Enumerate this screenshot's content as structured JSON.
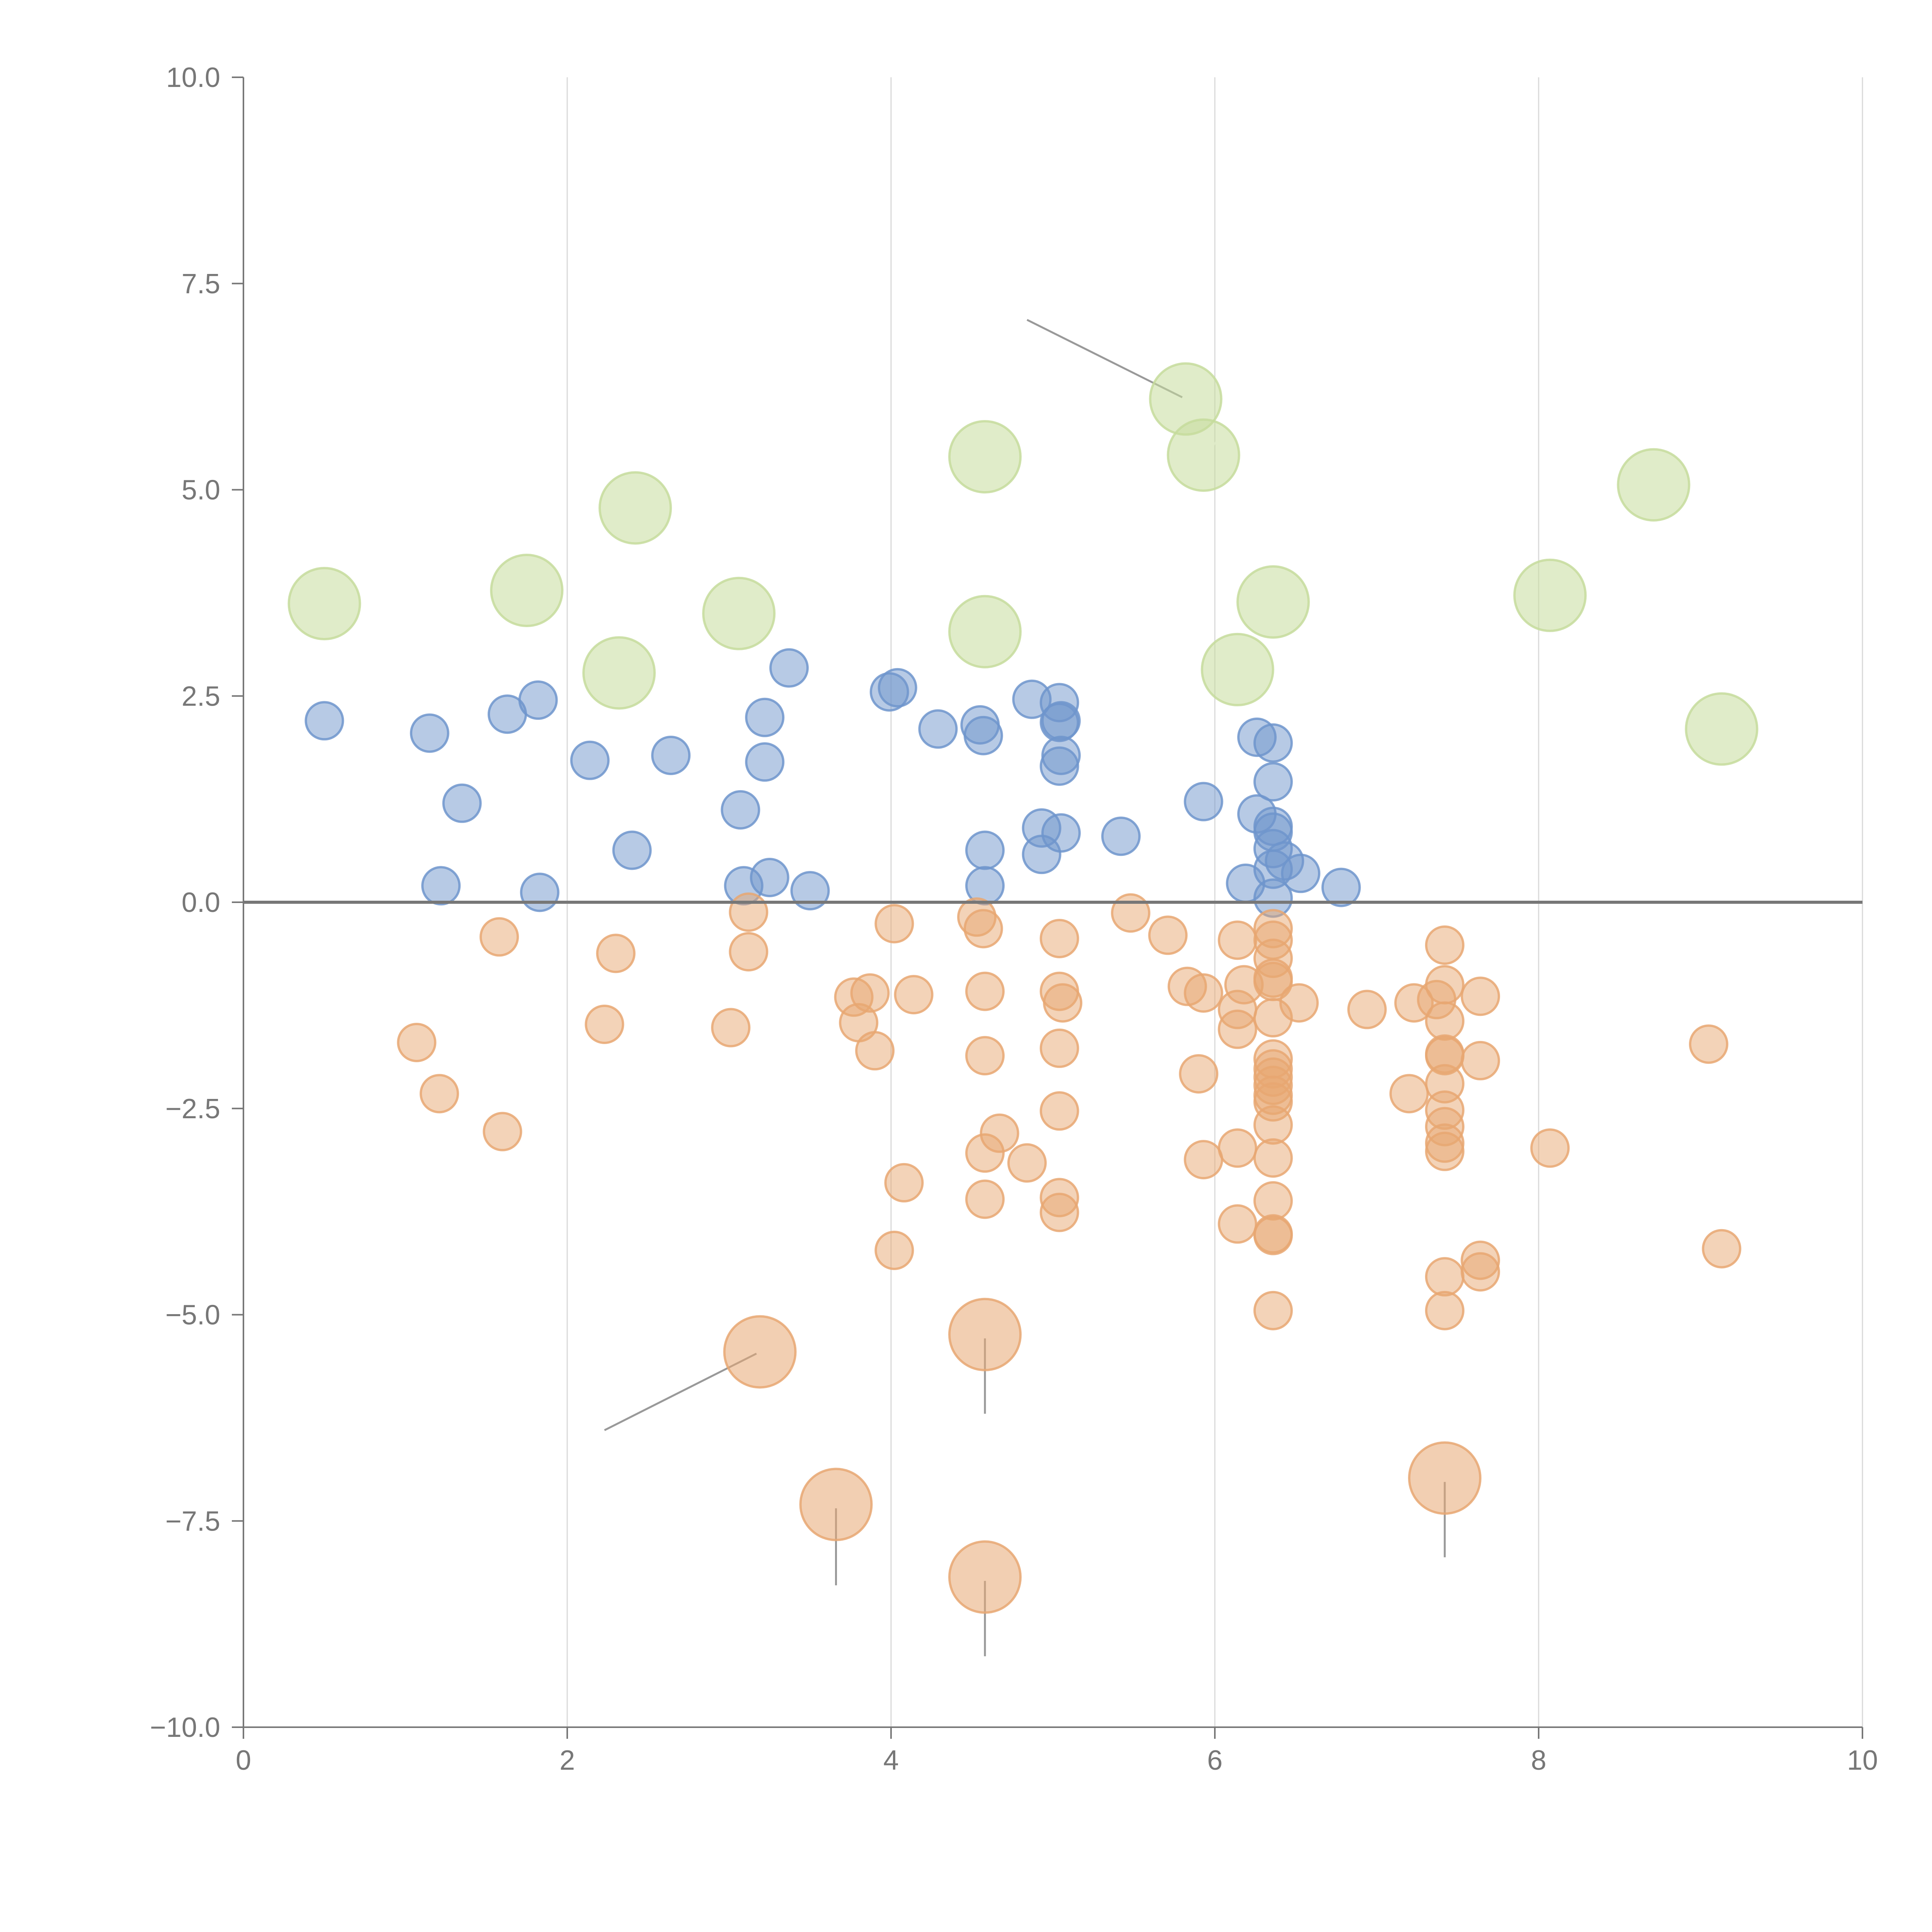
{
  "chart_data": {
    "type": "scatter",
    "title": "",
    "xlabel": "",
    "ylabel": "",
    "xlim": [
      0,
      10
    ],
    "ylim": [
      -10,
      10
    ],
    "x_ticks": [
      0,
      2,
      4,
      6,
      8,
      10
    ],
    "y_ticks": [
      -10,
      -7.5,
      -5,
      -2.5,
      0,
      2.5,
      5,
      7.5,
      10
    ],
    "x_tick_labels": [
      "0",
      "2",
      "4",
      "6",
      "8",
      "10"
    ],
    "y_tick_labels": [
      "−10.0",
      "−7.5",
      "−5.0",
      "−2.5",
      "0.0",
      "2.5",
      "5.0",
      "7.5",
      "10.0"
    ],
    "grid": "vertical",
    "reference_line": 0,
    "legend": "none",
    "series": [
      {
        "name": "positive",
        "color": "#6f95cc",
        "size": "small",
        "points": [
          [
            0.5,
            2.2
          ],
          [
            1.15,
            2.05
          ],
          [
            1.35,
            1.2
          ],
          [
            1.22,
            0.2
          ],
          [
            1.63,
            2.28
          ],
          [
            1.82,
            2.45
          ],
          [
            1.83,
            0.12
          ],
          [
            2.14,
            1.72
          ],
          [
            2.4,
            0.63
          ],
          [
            2.64,
            1.78
          ],
          [
            3.07,
            1.12
          ],
          [
            3.09,
            0.2
          ],
          [
            3.22,
            2.24
          ],
          [
            3.22,
            1.7
          ],
          [
            3.25,
            0.3
          ],
          [
            3.37,
            2.84
          ],
          [
            3.5,
            0.14
          ],
          [
            3.99,
            2.55
          ],
          [
            4.04,
            2.6
          ],
          [
            4.29,
            2.1
          ],
          [
            4.55,
            2.15
          ],
          [
            4.57,
            2.02
          ],
          [
            4.58,
            0.63
          ],
          [
            4.58,
            0.2
          ],
          [
            4.87,
            2.46
          ],
          [
            4.93,
            0.9
          ],
          [
            4.93,
            0.58
          ],
          [
            5.04,
            2.42
          ],
          [
            5.04,
            2.18
          ],
          [
            5.05,
            2.2
          ],
          [
            5.05,
            1.78
          ],
          [
            5.04,
            1.65
          ],
          [
            5.05,
            0.84
          ],
          [
            5.42,
            0.8
          ],
          [
            5.93,
            1.22
          ],
          [
            6.19,
            0.23
          ],
          [
            6.26,
            2.0
          ],
          [
            6.26,
            1.07
          ],
          [
            6.36,
            1.93
          ],
          [
            6.36,
            1.46
          ],
          [
            6.36,
            0.92
          ],
          [
            6.36,
            0.85
          ],
          [
            6.36,
            0.65
          ],
          [
            6.36,
            0.4
          ],
          [
            6.36,
            0.05
          ],
          [
            6.43,
            0.5
          ],
          [
            6.53,
            0.35
          ],
          [
            6.78,
            0.18
          ]
        ]
      },
      {
        "name": "negative",
        "color": "#e8a772",
        "size": "small",
        "points": [
          [
            1.07,
            -1.7
          ],
          [
            1.21,
            -2.32
          ],
          [
            1.58,
            -0.42
          ],
          [
            1.6,
            -2.78
          ],
          [
            2.23,
            -1.48
          ],
          [
            2.3,
            -0.62
          ],
          [
            3.01,
            -1.52
          ],
          [
            3.12,
            -0.12
          ],
          [
            3.12,
            -0.6
          ],
          [
            3.77,
            -1.15
          ],
          [
            3.8,
            -1.46
          ],
          [
            3.87,
            -1.1
          ],
          [
            3.9,
            -1.8
          ],
          [
            4.02,
            -0.26
          ],
          [
            4.02,
            -4.22
          ],
          [
            4.08,
            -3.4
          ],
          [
            4.14,
            -1.12
          ],
          [
            4.53,
            -0.18
          ],
          [
            4.57,
            -0.32
          ],
          [
            4.58,
            -1.08
          ],
          [
            4.58,
            -1.86
          ],
          [
            4.58,
            -3.04
          ],
          [
            4.58,
            -3.6
          ],
          [
            4.67,
            -2.8
          ],
          [
            4.84,
            -3.16
          ],
          [
            5.04,
            -0.44
          ],
          [
            5.04,
            -1.08
          ],
          [
            5.06,
            -1.22
          ],
          [
            5.04,
            -1.77
          ],
          [
            5.04,
            -2.53
          ],
          [
            5.04,
            -3.58
          ],
          [
            5.04,
            -3.76
          ],
          [
            5.48,
            -0.13
          ],
          [
            5.71,
            -0.4
          ],
          [
            5.83,
            -1.02
          ],
          [
            5.9,
            -2.08
          ],
          [
            5.93,
            -1.1
          ],
          [
            5.93,
            -3.12
          ],
          [
            6.14,
            -0.46
          ],
          [
            6.14,
            -1.3
          ],
          [
            6.14,
            -1.54
          ],
          [
            6.14,
            -2.98
          ],
          [
            6.14,
            -3.9
          ],
          [
            6.18,
            -1.0
          ],
          [
            6.36,
            -0.32
          ],
          [
            6.36,
            -0.46
          ],
          [
            6.36,
            -0.68
          ],
          [
            6.36,
            -0.92
          ],
          [
            6.36,
            -0.96
          ],
          [
            6.36,
            -1.4
          ],
          [
            6.36,
            -1.9
          ],
          [
            6.36,
            -2.02
          ],
          [
            6.36,
            -2.12
          ],
          [
            6.36,
            -2.22
          ],
          [
            6.36,
            -2.34
          ],
          [
            6.36,
            -2.42
          ],
          [
            6.36,
            -2.7
          ],
          [
            6.36,
            -3.1
          ],
          [
            6.36,
            -3.62
          ],
          [
            6.36,
            -4.02
          ],
          [
            6.36,
            -4.04
          ],
          [
            6.36,
            -4.95
          ],
          [
            6.52,
            -1.22
          ],
          [
            6.94,
            -1.3
          ],
          [
            7.2,
            -2.32
          ],
          [
            7.23,
            -1.22
          ],
          [
            7.37,
            -1.18
          ],
          [
            7.42,
            -0.52
          ],
          [
            7.42,
            -1.0
          ],
          [
            7.42,
            -1.44
          ],
          [
            7.42,
            -1.84
          ],
          [
            7.42,
            -1.86
          ],
          [
            7.42,
            -2.2
          ],
          [
            7.42,
            -2.52
          ],
          [
            7.42,
            -2.72
          ],
          [
            7.42,
            -2.92
          ],
          [
            7.42,
            -3.02
          ],
          [
            7.42,
            -4.54
          ],
          [
            7.42,
            -4.95
          ],
          [
            7.64,
            -1.14
          ],
          [
            7.64,
            -1.92
          ],
          [
            7.64,
            -4.34
          ],
          [
            7.64,
            -4.48
          ],
          [
            8.07,
            -2.98
          ],
          [
            9.05,
            -1.72
          ],
          [
            9.13,
            -4.2
          ]
        ]
      },
      {
        "name": "positive-large",
        "color": "#c6dc9c",
        "size": "large",
        "points": [
          [
            0.5,
            3.62
          ],
          [
            1.75,
            3.78
          ],
          [
            2.32,
            2.78
          ],
          [
            2.42,
            4.78
          ],
          [
            3.06,
            3.5
          ],
          [
            4.58,
            5.4
          ],
          [
            4.58,
            3.28
          ],
          [
            5.82,
            6.1
          ],
          [
            5.93,
            5.42
          ],
          [
            6.14,
            2.82
          ],
          [
            6.36,
            3.64
          ],
          [
            8.07,
            3.72
          ],
          [
            8.71,
            5.06
          ],
          [
            9.13,
            2.1
          ]
        ]
      },
      {
        "name": "negative-large",
        "color": "#e8a772",
        "size": "large",
        "points": [
          [
            3.19,
            -5.45
          ],
          [
            3.66,
            -7.3
          ],
          [
            4.58,
            -5.24
          ],
          [
            4.58,
            -8.18
          ],
          [
            7.42,
            -6.98
          ]
        ]
      }
    ],
    "leader_lines": [
      {
        "from": [
          5.82,
          6.1
        ],
        "to": [
          4.84,
          7.06
        ]
      },
      {
        "from": [
          3.19,
          -5.45
        ],
        "to": [
          2.23,
          -6.4
        ]
      },
      {
        "from": [
          4.58,
          -5.24
        ],
        "to": [
          4.58,
          -6.2
        ]
      },
      {
        "from": [
          3.66,
          -7.3
        ],
        "to": [
          3.66,
          -8.28
        ]
      },
      {
        "from": [
          4.58,
          -8.18
        ],
        "to": [
          4.58,
          -9.14
        ]
      },
      {
        "from": [
          7.42,
          -6.98
        ],
        "to": [
          7.42,
          -7.94
        ]
      }
    ]
  }
}
